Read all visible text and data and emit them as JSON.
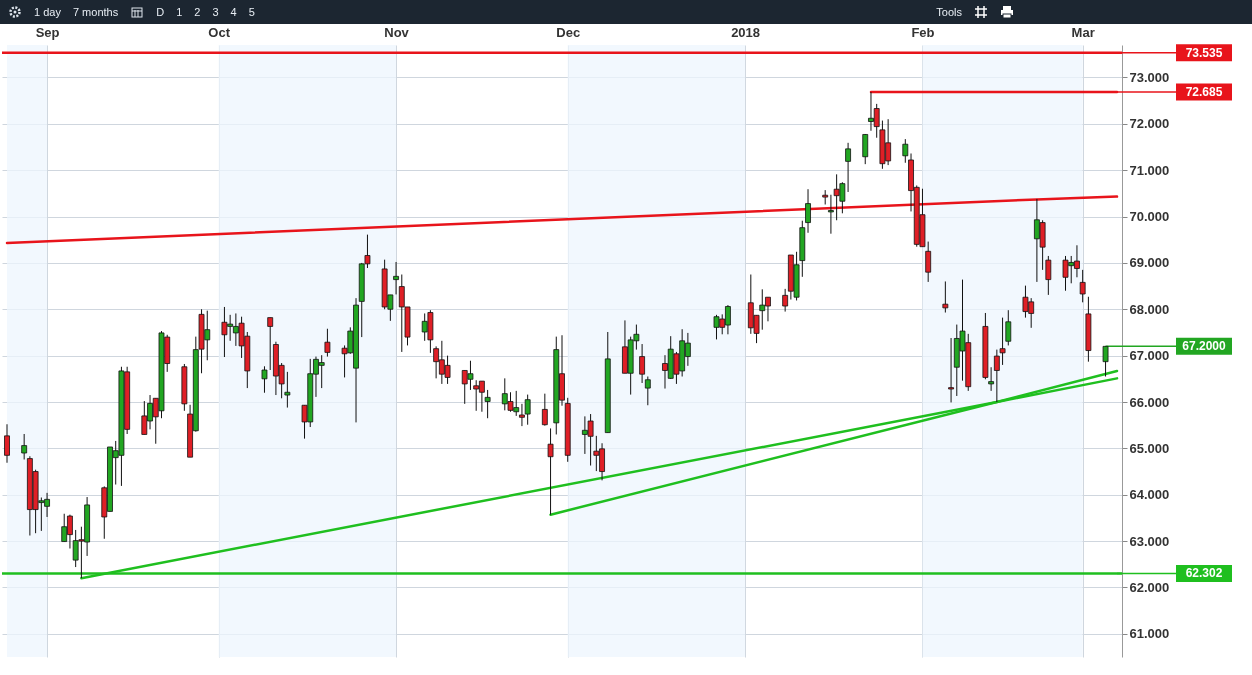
{
  "chart_data": {
    "type": "candlestick",
    "x": [
      "2017-08-25",
      "2017-08-28",
      "2017-08-29",
      "2017-08-30",
      "2017-08-31",
      "2017-09-01",
      "2017-09-04",
      "2017-09-05",
      "2017-09-06",
      "2017-09-07",
      "2017-09-08",
      "2017-09-11",
      "2017-09-12",
      "2017-09-13",
      "2017-09-14",
      "2017-09-15",
      "2017-09-18",
      "2017-09-19",
      "2017-09-20",
      "2017-09-21",
      "2017-09-22",
      "2017-09-25",
      "2017-09-26",
      "2017-09-27",
      "2017-09-28",
      "2017-09-29",
      "2017-10-02",
      "2017-10-03",
      "2017-10-04",
      "2017-10-05",
      "2017-10-06",
      "2017-10-09",
      "2017-10-10",
      "2017-10-11",
      "2017-10-12",
      "2017-10-13",
      "2017-10-16",
      "2017-10-17",
      "2017-10-18",
      "2017-10-19",
      "2017-10-20",
      "2017-10-23",
      "2017-10-24",
      "2017-10-25",
      "2017-10-26",
      "2017-10-27",
      "2017-10-30",
      "2017-10-31",
      "2017-11-01",
      "2017-11-02",
      "2017-11-03",
      "2017-11-06",
      "2017-11-07",
      "2017-11-08",
      "2017-11-09",
      "2017-11-10",
      "2017-11-13",
      "2017-11-14",
      "2017-11-15",
      "2017-11-16",
      "2017-11-17",
      "2017-11-20",
      "2017-11-21",
      "2017-11-22",
      "2017-11-23",
      "2017-11-24",
      "2017-11-27",
      "2017-11-28",
      "2017-11-29",
      "2017-11-30",
      "2017-12-01",
      "2017-12-04",
      "2017-12-05",
      "2017-12-06",
      "2017-12-07",
      "2017-12-08",
      "2017-12-11",
      "2017-12-12",
      "2017-12-13",
      "2017-12-14",
      "2017-12-15",
      "2017-12-18",
      "2017-12-19",
      "2017-12-20",
      "2017-12-21",
      "2017-12-22",
      "2017-12-27",
      "2017-12-28",
      "2017-12-29",
      "2018-01-02",
      "2018-01-03",
      "2018-01-04",
      "2018-01-05",
      "2018-01-08",
      "2018-01-09",
      "2018-01-10",
      "2018-01-11",
      "2018-01-12",
      "2018-01-15",
      "2018-01-16",
      "2018-01-17",
      "2018-01-18",
      "2018-01-19",
      "2018-01-22",
      "2018-01-23",
      "2018-01-24",
      "2018-01-25",
      "2018-01-26",
      "2018-01-29",
      "2018-01-30",
      "2018-01-31",
      "2018-02-01",
      "2018-02-02",
      "2018-02-05",
      "2018-02-06",
      "2018-02-07",
      "2018-02-08",
      "2018-02-09",
      "2018-02-12",
      "2018-02-13",
      "2018-02-14",
      "2018-02-15",
      "2018-02-16",
      "2018-02-19",
      "2018-02-20",
      "2018-02-21",
      "2018-02-22",
      "2018-02-23",
      "2018-02-26",
      "2018-02-27",
      "2018-02-28",
      "2018-03-01",
      "2018-03-02",
      "2018-03-05"
    ],
    "ohlc": [
      [
        65.27,
        65.52,
        64.69,
        64.85
      ],
      [
        64.9,
        65.31,
        64.76,
        65.06
      ],
      [
        64.78,
        64.83,
        63.12,
        63.68
      ],
      [
        64.5,
        64.54,
        63.17,
        63.68
      ],
      [
        63.83,
        63.94,
        63.22,
        63.87
      ],
      [
        63.75,
        64.04,
        63.52,
        63.9
      ],
      [
        62.99,
        63.59,
        62.99,
        63.31
      ],
      [
        63.54,
        63.57,
        62.84,
        63.14
      ],
      [
        62.59,
        63.24,
        62.44,
        63.01
      ],
      [
        63.03,
        63.31,
        62.2,
        63.0
      ],
      [
        62.98,
        63.95,
        62.68,
        63.78
      ],
      [
        64.15,
        64.18,
        63.05,
        63.52
      ],
      [
        63.64,
        65.03,
        63.64,
        65.03
      ],
      [
        64.8,
        65.16,
        64.22,
        64.95
      ],
      [
        64.85,
        66.76,
        64.19,
        66.67
      ],
      [
        66.65,
        66.76,
        65.31,
        65.41
      ],
      [
        65.7,
        66.02,
        65.3,
        65.3
      ],
      [
        65.59,
        66.15,
        65.41,
        65.97
      ],
      [
        66.08,
        66.08,
        65.1,
        65.68
      ],
      [
        65.81,
        67.53,
        65.65,
        67.49
      ],
      [
        67.4,
        67.45,
        66.65,
        66.83
      ],
      [
        66.76,
        66.82,
        65.81,
        65.96
      ],
      [
        65.74,
        65.94,
        64.81,
        64.81
      ],
      [
        65.38,
        67.41,
        65.36,
        67.13
      ],
      [
        67.89,
        68.0,
        66.62,
        67.14
      ],
      [
        67.34,
        67.97,
        66.9,
        67.56
      ],
      [
        67.72,
        68.05,
        66.97,
        67.45
      ],
      [
        67.63,
        67.88,
        67.32,
        67.68
      ],
      [
        67.49,
        67.91,
        67.21,
        67.63
      ],
      [
        67.7,
        67.84,
        66.95,
        67.21
      ],
      [
        67.42,
        67.51,
        66.3,
        66.67
      ],
      [
        66.5,
        66.77,
        66.2,
        66.69
      ],
      [
        67.82,
        67.82,
        66.69,
        67.63
      ],
      [
        67.24,
        67.3,
        66.15,
        66.56
      ],
      [
        66.79,
        66.84,
        66.08,
        66.39
      ],
      [
        66.15,
        66.65,
        65.88,
        66.21
      ],
      [
        65.93,
        65.93,
        65.21,
        65.57
      ],
      [
        65.57,
        66.93,
        65.46,
        66.61
      ],
      [
        66.6,
        66.98,
        66.11,
        66.92
      ],
      [
        66.79,
        67.01,
        66.3,
        66.85
      ],
      [
        67.29,
        67.58,
        66.98,
        67.07
      ],
      [
        67.16,
        67.22,
        66.53,
        67.04
      ],
      [
        67.06,
        67.61,
        67.04,
        67.53
      ],
      [
        66.73,
        68.24,
        65.56,
        68.09
      ],
      [
        68.17,
        69.0,
        67.4,
        68.98
      ],
      [
        69.16,
        69.61,
        68.89,
        68.98
      ],
      [
        68.87,
        69.07,
        68.0,
        68.05
      ],
      [
        68.0,
        68.31,
        67.75,
        68.31
      ],
      [
        68.64,
        69.02,
        68.32,
        68.71
      ],
      [
        68.49,
        68.75,
        67.08,
        68.05
      ],
      [
        68.05,
        68.05,
        67.22,
        67.4
      ],
      [
        67.51,
        67.91,
        67.32,
        67.74
      ],
      [
        67.93,
        67.98,
        67.06,
        67.34
      ],
      [
        67.15,
        67.2,
        66.51,
        66.87
      ],
      [
        66.91,
        67.32,
        66.39,
        66.6
      ],
      [
        66.79,
        67.0,
        66.39,
        66.53
      ],
      [
        66.68,
        66.68,
        65.96,
        66.39
      ],
      [
        66.49,
        66.89,
        66.26,
        66.61
      ],
      [
        66.35,
        66.47,
        65.81,
        66.28
      ],
      [
        66.45,
        66.45,
        65.79,
        66.21
      ],
      [
        66.01,
        66.26,
        65.65,
        66.1
      ],
      [
        65.96,
        66.51,
        65.82,
        66.18
      ],
      [
        66.01,
        66.21,
        65.79,
        65.82
      ],
      [
        65.79,
        66.24,
        65.7,
        65.88
      ],
      [
        65.72,
        65.96,
        65.48,
        65.67
      ],
      [
        65.74,
        66.16,
        65.51,
        66.05
      ],
      [
        65.84,
        66.18,
        65.49,
        65.51
      ],
      [
        65.09,
        65.43,
        63.57,
        64.82
      ],
      [
        65.55,
        67.41,
        65.3,
        67.13
      ],
      [
        66.61,
        67.44,
        65.92,
        66.04
      ],
      [
        65.97,
        66.09,
        64.71,
        64.85
      ],
      [
        65.3,
        65.69,
        64.88,
        65.39
      ],
      [
        65.59,
        65.74,
        64.63,
        65.26
      ],
      [
        64.94,
        65.27,
        64.51,
        64.85
      ],
      [
        64.99,
        65.11,
        64.31,
        64.5
      ],
      [
        65.34,
        67.51,
        65.34,
        66.93
      ],
      [
        67.19,
        67.76,
        66.62,
        66.62
      ],
      [
        66.62,
        67.41,
        66.16,
        67.34
      ],
      [
        67.32,
        67.67,
        67.13,
        67.46
      ],
      [
        66.98,
        67.25,
        66.41,
        66.6
      ],
      [
        66.3,
        66.55,
        65.93,
        66.48
      ],
      [
        66.83,
        67.01,
        66.29,
        66.68
      ],
      [
        66.51,
        67.42,
        66.5,
        67.14
      ],
      [
        67.04,
        67.08,
        66.39,
        66.6
      ],
      [
        66.67,
        67.57,
        66.55,
        67.32
      ],
      [
        66.98,
        67.49,
        66.78,
        67.27
      ],
      [
        67.61,
        67.88,
        67.35,
        67.84
      ],
      [
        67.79,
        67.89,
        67.46,
        67.61
      ],
      [
        67.66,
        68.09,
        67.46,
        68.06
      ],
      [
        68.14,
        68.75,
        67.47,
        67.6
      ],
      [
        67.87,
        67.87,
        67.27,
        67.48
      ],
      [
        67.97,
        68.43,
        67.56,
        68.09
      ],
      [
        68.26,
        68.26,
        67.74,
        68.07
      ],
      [
        68.3,
        68.44,
        67.95,
        68.07
      ],
      [
        69.17,
        69.17,
        68.21,
        68.39
      ],
      [
        68.26,
        69.24,
        68.19,
        68.96
      ],
      [
        69.05,
        69.91,
        68.7,
        69.76
      ],
      [
        69.87,
        70.59,
        69.65,
        70.28
      ],
      [
        70.46,
        70.57,
        70.26,
        70.42
      ],
      [
        70.1,
        70.47,
        69.63,
        70.13
      ],
      [
        70.59,
        70.91,
        69.92,
        70.45
      ],
      [
        70.33,
        70.74,
        70.07,
        70.71
      ],
      [
        71.19,
        71.59,
        70.53,
        71.46
      ],
      [
        71.29,
        71.78,
        71.13,
        71.77
      ],
      [
        72.05,
        72.685,
        71.85,
        72.12
      ],
      [
        72.33,
        72.43,
        71.7,
        71.94
      ],
      [
        71.87,
        72.07,
        71.03,
        71.14
      ],
      [
        71.59,
        72.1,
        71.11,
        71.2
      ],
      [
        71.31,
        71.67,
        71.16,
        71.56
      ],
      [
        71.22,
        71.36,
        70.11,
        70.56
      ],
      [
        70.63,
        70.67,
        69.35,
        69.4
      ],
      [
        70.04,
        70.6,
        69.35,
        69.35
      ],
      [
        69.25,
        69.46,
        68.59,
        68.8
      ],
      [
        68.11,
        68.6,
        67.93,
        68.03
      ],
      [
        66.31,
        67.38,
        65.99,
        66.28
      ],
      [
        66.75,
        67.67,
        66.13,
        67.37
      ],
      [
        67.1,
        68.64,
        66.46,
        67.53
      ],
      [
        67.28,
        67.47,
        66.24,
        66.33
      ],
      [
        67.63,
        67.92,
        66.49,
        66.53
      ],
      [
        66.39,
        66.75,
        66.24,
        66.44
      ],
      [
        66.99,
        67.13,
        66.0,
        66.68
      ],
      [
        67.15,
        67.82,
        66.8,
        67.06
      ],
      [
        67.31,
        67.98,
        67.22,
        67.73
      ],
      [
        68.26,
        68.51,
        67.82,
        67.95
      ],
      [
        68.16,
        68.24,
        67.6,
        67.91
      ],
      [
        69.52,
        70.38,
        68.59,
        69.93
      ],
      [
        69.87,
        69.92,
        68.85,
        69.34
      ],
      [
        69.06,
        69.15,
        68.31,
        68.64
      ],
      [
        69.06,
        69.15,
        68.4,
        68.69
      ],
      [
        68.94,
        69.15,
        68.56,
        69.01
      ],
      [
        69.04,
        69.38,
        68.69,
        68.88
      ],
      [
        68.58,
        68.85,
        68.15,
        68.33
      ],
      [
        67.9,
        68.27,
        66.87,
        67.11
      ],
      [
        66.87,
        67.2,
        66.55,
        67.2
      ]
    ],
    "series": [
      {
        "type": "line",
        "color": "#e8141b",
        "x": [
          "2017-08-25",
          "2018-02-21",
          "2018-03-07"
        ],
        "values": [
          69.43,
          70.37,
          70.43
        ]
      },
      {
        "type": "line",
        "color": "#1fbf1f",
        "x": [
          "2017-09-07",
          "2018-02-14",
          "2018-03-07"
        ],
        "values": [
          62.2,
          66.0,
          66.51
        ]
      },
      {
        "type": "line",
        "color": "#1fbf1f",
        "x": [
          "2017-11-28",
          "2018-02-14",
          "2018-03-07"
        ],
        "values": [
          63.57,
          66.0,
          66.67
        ]
      },
      {
        "type": "line",
        "color": "#e8141b",
        "x": [
          "2018-01-23",
          "2018-03-07"
        ],
        "values": [
          72.685,
          72.685
        ]
      }
    ],
    "ref_lines": [
      {
        "axis": "y",
        "value": 73.535,
        "label": "73.535",
        "color": "#e8141b"
      },
      {
        "axis": "y",
        "value": 62.302,
        "label": "62.302",
        "color": "#1fbf1f"
      }
    ],
    "bands": [
      {
        "axis": "x",
        "from": "2017-08-25",
        "to": "2017-09-01",
        "color": "#eef6fd"
      },
      {
        "axis": "x",
        "from": "2017-10-01",
        "to": "2017-11-01",
        "color": "#eef6fd"
      },
      {
        "axis": "x",
        "from": "2017-12-01",
        "to": "2018-01-01",
        "color": "#eef6fd"
      },
      {
        "axis": "x",
        "from": "2018-02-01",
        "to": "2018-03-01",
        "color": "#eef6fd"
      }
    ],
    "annotations": [
      "1 day",
      "7 months",
      "D",
      "1",
      "2",
      "3",
      "4",
      "5",
      "Tools",
      {
        "text": "72.685",
        "x": "2018-01-23",
        "y": 72.685
      },
      {
        "text": "67.2000",
        "x": "2018-03-05",
        "y": 67.2
      }
    ],
    "xlim": [
      "2017-08-25",
      "2018-03-07"
    ],
    "xticks": [
      {
        "value": "2017-09-01",
        "label": "Sep"
      },
      {
        "value": "2017-10-01",
        "label": "Oct"
      },
      {
        "value": "2017-11-01",
        "label": "Nov"
      },
      {
        "value": "2017-12-01",
        "label": "Dec"
      },
      {
        "value": "2018-01-01",
        "label": "2018"
      },
      {
        "value": "2018-02-01",
        "label": "Feb"
      },
      {
        "value": "2018-03-01",
        "label": "Mar"
      }
    ],
    "ylim": [
      60.5,
      73.7
    ],
    "yticks": [
      {
        "value": 61,
        "label": "61.000"
      },
      {
        "value": 62,
        "label": "62.000"
      },
      {
        "value": 63,
        "label": "63.000"
      },
      {
        "value": 64,
        "label": "64.000"
      },
      {
        "value": 65,
        "label": "65.000"
      },
      {
        "value": 66,
        "label": "66.000"
      },
      {
        "value": 67,
        "label": "67.000"
      },
      {
        "value": 68,
        "label": "68.000"
      },
      {
        "value": 69,
        "label": "69.000"
      },
      {
        "value": 70,
        "label": "70.000"
      },
      {
        "value": 71,
        "label": "71.000"
      },
      {
        "value": 72,
        "label": "72.000"
      },
      {
        "value": 73,
        "label": "73.000"
      }
    ],
    "grid": true
  }
}
